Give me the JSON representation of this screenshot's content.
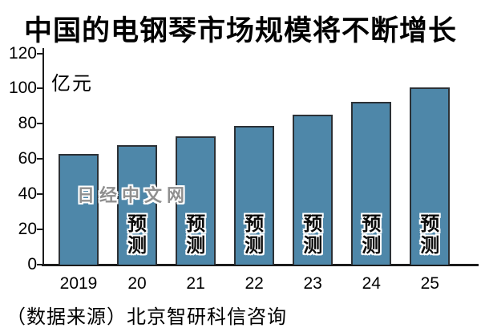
{
  "title": "中国的电钢琴市场规模将不断增长",
  "watermark": "日经中文网",
  "source": "（数据来源）北京智研科信咨询",
  "chart_data": {
    "type": "bar",
    "title": "中国的电钢琴市场规模将不断增长",
    "unit_label": "亿元",
    "categories": [
      "2019",
      "20",
      "21",
      "22",
      "23",
      "24",
      "25"
    ],
    "values": [
      63,
      68,
      73,
      79,
      85,
      92.5,
      100.5
    ],
    "forecast_label": "预测",
    "forecast_from_index": 1,
    "ylim": [
      0,
      120
    ],
    "yticks": [
      0,
      20,
      40,
      60,
      80,
      100,
      120
    ],
    "grid": false,
    "legend": "none",
    "bar_color": "#4e87a9",
    "bar_border_color": "#2c3136",
    "source": "（数据来源）北京智研科信咨询"
  }
}
